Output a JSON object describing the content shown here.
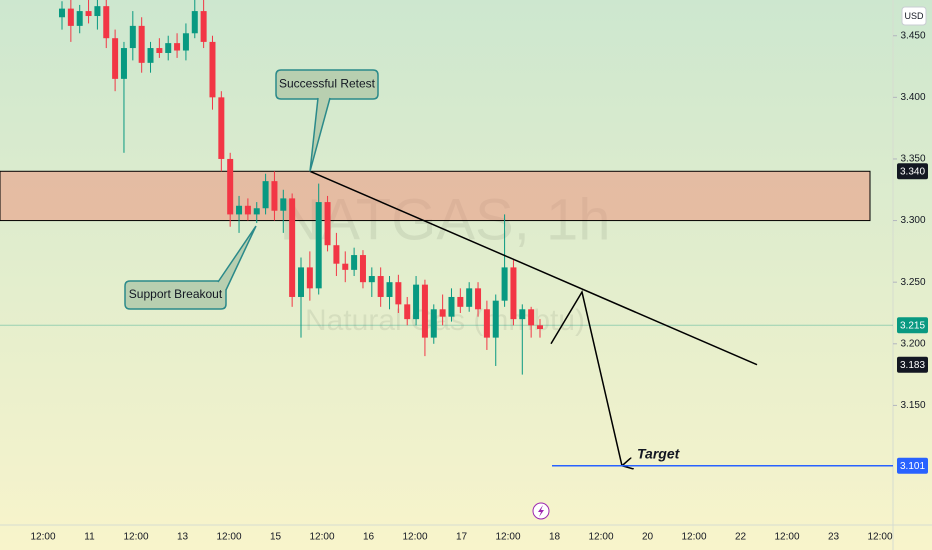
{
  "chart_data": {
    "type": "candlestick",
    "watermark_title": "NATGAS, 1h",
    "watermark_subtitle": "Natural Gas (mmbtu)",
    "currency": "USD",
    "up_color": "#089981",
    "down_color": "#f23645",
    "ylim": [
      3.057,
      3.479
    ],
    "yticks": [
      {
        "value": 3.15,
        "label": "3.150"
      },
      {
        "value": 3.2,
        "label": "3.200"
      },
      {
        "value": 3.25,
        "label": "3.250"
      },
      {
        "value": 3.3,
        "label": "3.300"
      },
      {
        "value": 3.35,
        "label": "3.350"
      },
      {
        "value": 3.4,
        "label": "3.400"
      },
      {
        "value": 3.45,
        "label": "3.450"
      }
    ],
    "x_labels": [
      "12:00",
      "11",
      "12:00",
      "13",
      "12:00",
      "15",
      "12:00",
      "16",
      "12:00",
      "17",
      "12:00",
      "18",
      "12:00",
      "20",
      "12:00",
      "22",
      "12:00",
      "23",
      "12:00"
    ],
    "open": [
      3.465,
      3.472,
      3.458,
      3.47,
      3.466,
      3.474,
      3.448,
      3.415,
      3.44,
      3.458,
      3.428,
      3.44,
      3.436,
      3.444,
      3.438,
      3.452,
      3.47,
      3.445,
      3.4,
      3.35,
      3.305,
      3.312,
      3.305,
      3.31,
      3.332,
      3.308,
      3.318,
      3.238,
      3.262,
      3.245,
      3.315,
      3.28,
      3.265,
      3.26,
      3.272,
      3.25,
      3.255,
      3.238,
      3.25,
      3.232,
      3.22,
      3.248,
      3.205,
      3.228,
      3.222,
      3.238,
      3.23,
      3.245,
      3.228,
      3.205,
      3.235,
      3.262,
      3.22,
      3.228,
      3.215
    ],
    "high": [
      3.478,
      3.479,
      3.475,
      3.479,
      3.479,
      3.479,
      3.455,
      3.445,
      3.47,
      3.465,
      3.445,
      3.448,
      3.45,
      3.452,
      3.46,
      3.479,
      3.479,
      3.45,
      3.405,
      3.355,
      3.32,
      3.318,
      3.315,
      3.338,
      3.34,
      3.325,
      3.322,
      3.27,
      3.275,
      3.33,
      3.32,
      3.29,
      3.275,
      3.278,
      3.276,
      3.262,
      3.262,
      3.255,
      3.256,
      3.238,
      3.255,
      3.252,
      3.232,
      3.24,
      3.245,
      3.245,
      3.25,
      3.25,
      3.235,
      3.24,
      3.305,
      3.268,
      3.232,
      3.23,
      3.22
    ],
    "low": [
      3.455,
      3.445,
      3.452,
      3.46,
      3.455,
      3.44,
      3.405,
      3.355,
      3.43,
      3.42,
      3.42,
      3.432,
      3.43,
      3.432,
      3.43,
      3.448,
      3.44,
      3.39,
      3.34,
      3.295,
      3.29,
      3.3,
      3.298,
      3.305,
      3.3,
      3.29,
      3.23,
      3.205,
      3.235,
      3.24,
      3.275,
      3.255,
      3.25,
      3.255,
      3.245,
      3.238,
      3.23,
      3.228,
      3.225,
      3.215,
      3.215,
      3.19,
      3.2,
      3.215,
      3.218,
      3.225,
      3.226,
      3.222,
      3.195,
      3.182,
      3.23,
      3.215,
      3.175,
      3.205,
      3.205
    ],
    "close": [
      3.472,
      3.458,
      3.47,
      3.466,
      3.474,
      3.448,
      3.415,
      3.44,
      3.458,
      3.428,
      3.44,
      3.436,
      3.444,
      3.438,
      3.452,
      3.47,
      3.445,
      3.4,
      3.35,
      3.305,
      3.312,
      3.305,
      3.31,
      3.332,
      3.308,
      3.318,
      3.238,
      3.262,
      3.245,
      3.315,
      3.28,
      3.265,
      3.26,
      3.272,
      3.25,
      3.255,
      3.238,
      3.25,
      3.232,
      3.22,
      3.248,
      3.205,
      3.228,
      3.222,
      3.238,
      3.23,
      3.245,
      3.228,
      3.205,
      3.235,
      3.262,
      3.22,
      3.228,
      3.215,
      3.212
    ],
    "zone": [
      3.3,
      3.34
    ],
    "trendline": [
      3.34,
      3.183
    ],
    "projection": [
      3.2,
      3.242,
      3.101
    ],
    "target_level": 3.101,
    "price_tags": [
      {
        "value": 3.34,
        "label": "3.340",
        "color": "#131722"
      },
      {
        "value": 3.215,
        "label": "3.215",
        "color": "#089981"
      },
      {
        "value": 3.183,
        "label": "3.183",
        "color": "#131722"
      },
      {
        "value": 3.101,
        "label": "3.101",
        "color": "#2962ff"
      }
    ],
    "annotations": {
      "retest": "Successful Retest",
      "breakout": "Support Breakout",
      "target": "Target"
    }
  }
}
